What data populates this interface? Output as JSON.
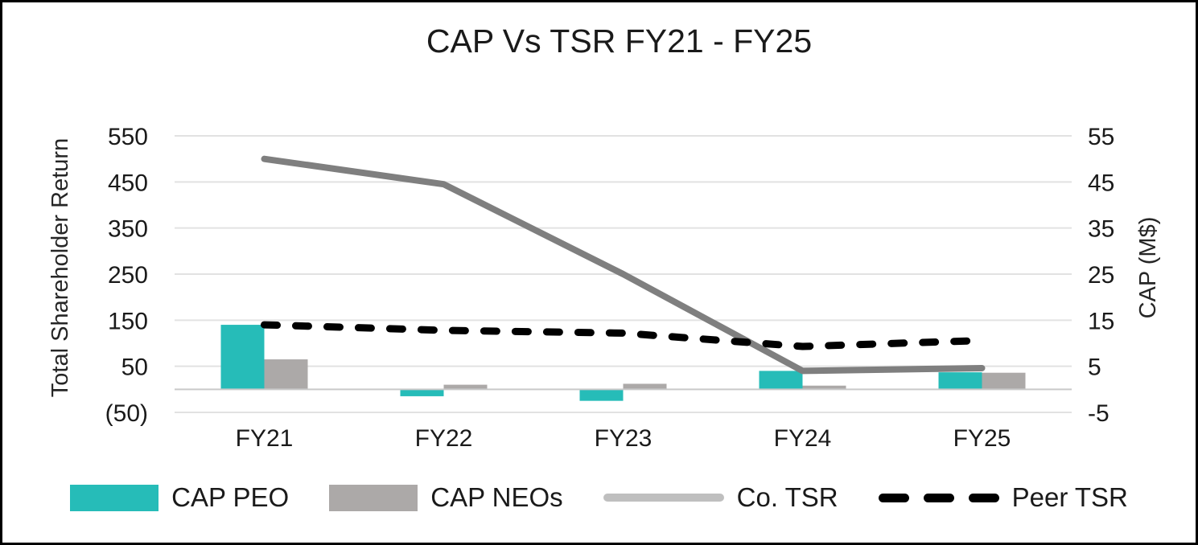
{
  "title": "CAP Vs TSR FY21 - FY25",
  "axes": {
    "left": {
      "title": "Total Shareholder Return",
      "tick_labels": [
        "550",
        "450",
        "350",
        "250",
        "150",
        "50",
        "(50)"
      ]
    },
    "right": {
      "title": "CAP (M$)",
      "tick_labels": [
        "55",
        "45",
        "35",
        "25",
        "15",
        "5",
        "-5"
      ]
    },
    "x": {
      "tick_labels": [
        "FY21",
        "FY22",
        "FY23",
        "FY24",
        "FY25"
      ]
    }
  },
  "chart_data": {
    "type": "bar+line combo",
    "title": "CAP Vs TSR FY21 - FY25",
    "categories": [
      "FY21",
      "FY22",
      "FY23",
      "FY24",
      "FY25"
    ],
    "series": [
      {
        "name": "CAP PEO",
        "type": "bar",
        "axis": "right",
        "color": "#26BCB8",
        "values": [
          14.0,
          -1.5,
          -2.5,
          4.0,
          3.7
        ]
      },
      {
        "name": "CAP NEOs",
        "type": "bar",
        "axis": "right",
        "color": "#ACA9A8",
        "values": [
          6.5,
          1.0,
          1.2,
          0.8,
          3.6
        ]
      },
      {
        "name": "Co. TSR",
        "type": "line",
        "axis": "left",
        "color": "#7F7F7F",
        "values": [
          500,
          445,
          250,
          40,
          46
        ]
      },
      {
        "name": "Peer TSR",
        "type": "line-dashed",
        "axis": "left",
        "color": "#000000",
        "values": [
          140,
          128,
          122,
          93,
          106
        ]
      }
    ],
    "left_axis": {
      "label": "Total Shareholder Return",
      "min": -50,
      "max": 550,
      "step": 100,
      "ticks": [
        550,
        450,
        350,
        250,
        150,
        50,
        -50
      ]
    },
    "right_axis": {
      "label": "CAP (M$)",
      "min": -5,
      "max": 55,
      "step": 10,
      "ticks": [
        55,
        45,
        35,
        25,
        15,
        5,
        -5
      ]
    },
    "grid": true,
    "legend_position": "bottom"
  },
  "legend": {
    "items": [
      {
        "label": "CAP PEO",
        "swatch": "bar",
        "color": "#26BCB8"
      },
      {
        "label": "CAP NEOs",
        "swatch": "bar",
        "color": "#ACA9A8"
      },
      {
        "label": "Co. TSR",
        "swatch": "line",
        "color": "#BFBFBF"
      },
      {
        "label": "Peer TSR",
        "swatch": "dashed-line",
        "color": "#000000"
      }
    ]
  },
  "colors": {
    "background": "#FFFFFF",
    "border": "#000000",
    "gridline": "#E2E2E2",
    "zero_axis_line": "#C9C9C9",
    "text": "#1A1A1A",
    "cap_peo": "#26BCB8",
    "cap_neos": "#ACA9A8",
    "co_tsr_line": "#7F7F7F",
    "peer_tsr_line": "#000000"
  }
}
